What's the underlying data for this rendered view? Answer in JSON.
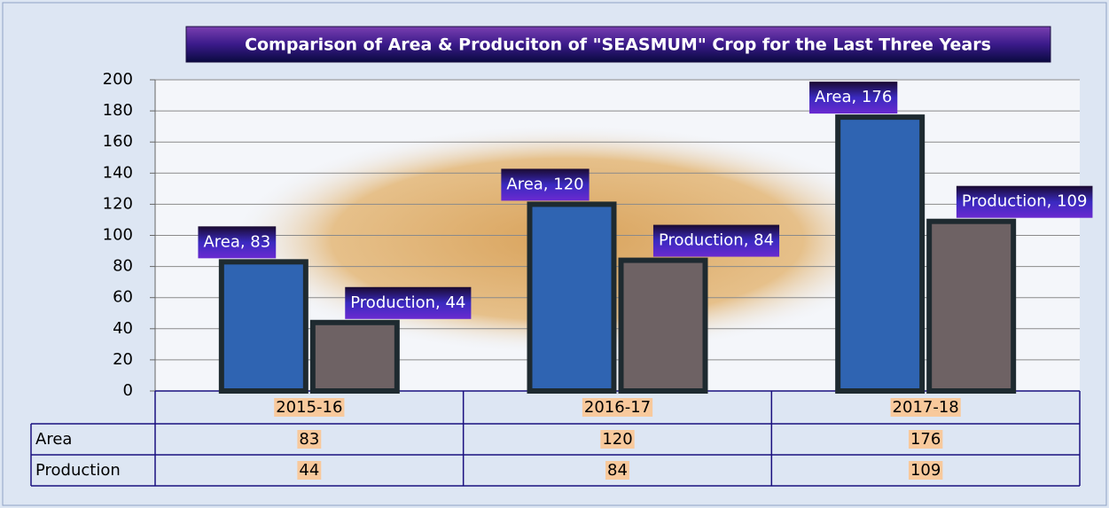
{
  "chart_data": {
    "type": "bar",
    "title": "Comparison of Area & Produciton of  \"SEASMUM\" Crop  for the Last Three Years",
    "categories": [
      "2015-16",
      "2016-17",
      "2017-18"
    ],
    "series": [
      {
        "name": "Area",
        "color": "#2f64b2",
        "values": [
          83,
          120,
          176
        ],
        "value_labels": [
          "Area, 83",
          "Area, 120",
          "Area, 176"
        ]
      },
      {
        "name": "Production",
        "color": "#6e6264",
        "values": [
          44,
          84,
          109
        ],
        "value_labels": [
          "Production, 44",
          "Production, 84",
          "Production, 109"
        ]
      }
    ],
    "ylim": [
      0,
      200
    ],
    "yticks": [
      0,
      20,
      40,
      60,
      80,
      100,
      120,
      140,
      160,
      180,
      200
    ],
    "grid": true
  }
}
